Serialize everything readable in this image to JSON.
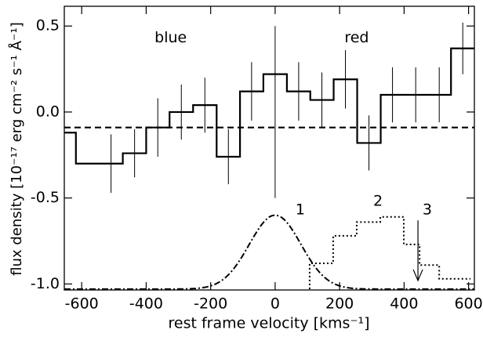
{
  "chart_data": {
    "type": "step",
    "xlabel": "rest frame velocity [kms⁻¹]",
    "ylabel": "flux density [10⁻¹⁷ erg cm⁻² s⁻¹ Å⁻¹]",
    "x": [
      -654,
      -582,
      -509,
      -436,
      -364,
      -291,
      -218,
      -145,
      -73,
      0,
      73,
      145,
      218,
      291,
      364,
      436,
      509,
      582
    ],
    "values": [
      -0.12,
      -0.3,
      -0.3,
      -0.24,
      -0.09,
      0.0,
      0.04,
      -0.26,
      0.12,
      0.22,
      0.12,
      0.07,
      0.19,
      -0.18,
      0.1,
      0.1,
      0.1,
      0.37
    ],
    "errors": [
      0.16,
      null,
      0.17,
      0.14,
      0.17,
      0.16,
      0.16,
      0.16,
      0.17,
      null,
      0.17,
      0.16,
      0.17,
      0.16,
      0.16,
      0.16,
      0.16,
      0.15
    ],
    "color": "#000000",
    "hline": -0.09,
    "vline": {
      "x": 0,
      "ymin": -0.5,
      "ymax": 0.5
    },
    "gaussian": {
      "center": 0,
      "sigma": 80,
      "amplitude": 0.43,
      "baseline": -1.03
    },
    "template": {
      "bins": [
        107,
        180,
        253,
        326,
        399,
        448,
        509,
        606
      ],
      "values": [
        -0.88,
        -0.72,
        -0.64,
        -0.61,
        -0.77,
        -0.89,
        -0.97
      ],
      "baseline": -1.03
    },
    "arrow": {
      "x": 443,
      "y_start": -0.63,
      "y_end": -0.98
    },
    "annotations": [
      {
        "text": "blue",
        "x": -324,
        "y": 0.43
      },
      {
        "text": "red",
        "x": 253,
        "y": 0.43
      },
      {
        "text": "1",
        "x": 78,
        "y": -0.57
      },
      {
        "text": "2",
        "x": 319,
        "y": -0.52
      },
      {
        "text": "3",
        "x": 472,
        "y": -0.57
      }
    ],
    "xlim": [
      -654,
      618
    ],
    "ylim": [
      -1.035,
      0.615
    ],
    "xticks": [
      -600,
      -400,
      -200,
      0,
      200,
      400,
      600
    ],
    "yticks": [
      {
        "value": -1.0,
        "label": "-1.0"
      },
      -0.5,
      {
        "value": 0.0,
        "label": "0.0"
      },
      0.5
    ]
  }
}
